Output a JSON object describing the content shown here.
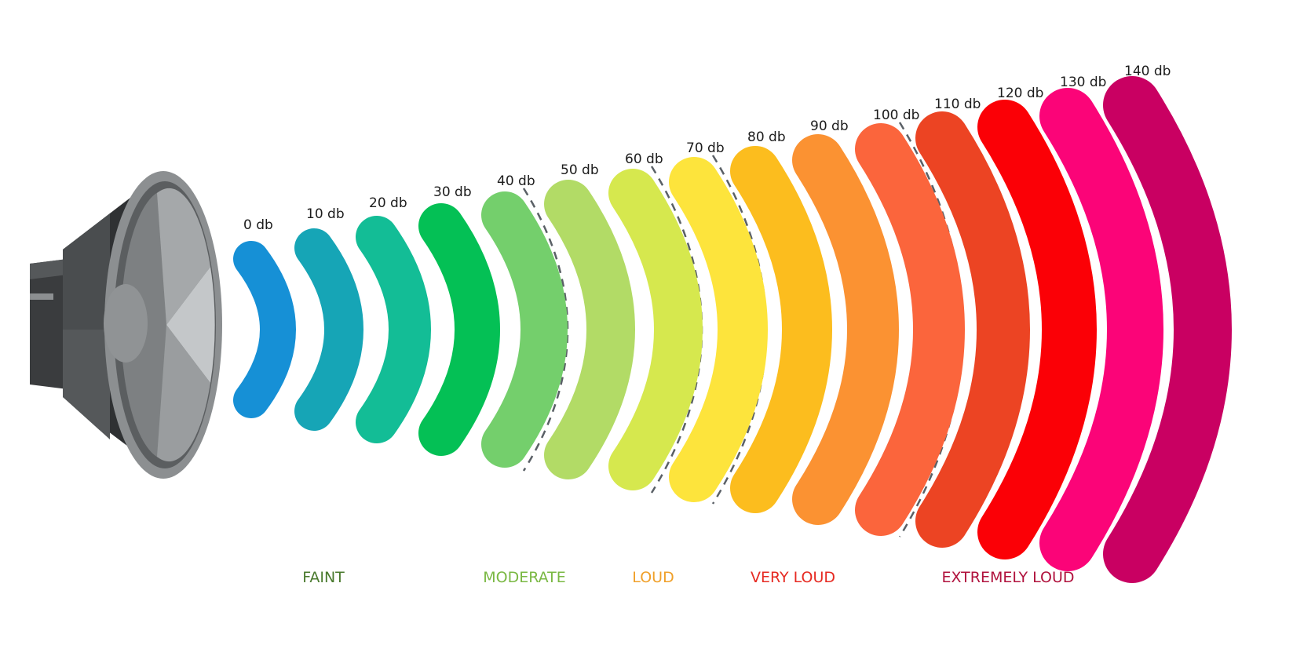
{
  "levels": [
    {
      "label": "0 db",
      "color": "#1690d6"
    },
    {
      "label": "10 db",
      "color": "#16a5b6"
    },
    {
      "label": "20 db",
      "color": "#13bd96"
    },
    {
      "label": "30 db",
      "color": "#04c055"
    },
    {
      "label": "40 db",
      "color": "#74cf6c"
    },
    {
      "label": "50 db",
      "color": "#b2db66"
    },
    {
      "label": "60 db",
      "color": "#d6e84e"
    },
    {
      "label": "70 db",
      "color": "#fde43c"
    },
    {
      "label": "80 db",
      "color": "#fcbd1e"
    },
    {
      "label": "90 db",
      "color": "#fb9232"
    },
    {
      "label": "100 db",
      "color": "#fb653c"
    },
    {
      "label": "110 db",
      "color": "#ec4423"
    },
    {
      "label": "120 db",
      "color": "#fb0006"
    },
    {
      "label": "130 db",
      "color": "#fb0478"
    },
    {
      "label": "140 db",
      "color": "#c90062"
    }
  ],
  "categories": [
    {
      "label": "FAINT",
      "color": "#4a7a2e"
    },
    {
      "label": "MODERATE",
      "color": "#7ab843"
    },
    {
      "label": "LOUD",
      "color": "#f0a02a"
    },
    {
      "label": "VERY LOUD",
      "color": "#e62a22"
    },
    {
      "label": "EXTREMELY LOUD",
      "color": "#b0123d"
    }
  ],
  "speaker": {
    "icon": "speaker-icon",
    "colors": {
      "dark": "#3a3c3e",
      "mid": "#6e7173",
      "light": "#b8bbbd",
      "rim": "#8c8f91"
    }
  },
  "separator_color": "#5a6066"
}
